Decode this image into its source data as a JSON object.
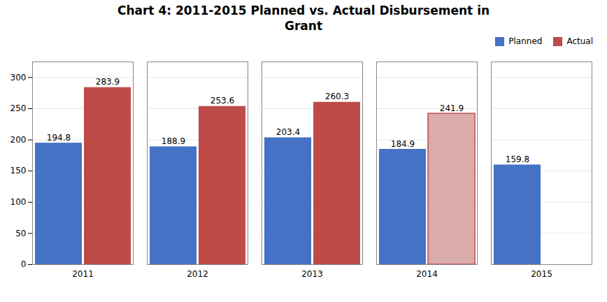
{
  "chart_data": {
    "type": "bar",
    "title": "Chart 4: 2011-2015 Planned vs. Actual Disbursement in\nGrant",
    "categories": [
      "2011",
      "2012",
      "2013",
      "2014",
      "2015"
    ],
    "series": [
      {
        "name": "Planned",
        "color": "#4472C4",
        "values": [
          194.8,
          188.9,
          203.4,
          184.9,
          159.8
        ]
      },
      {
        "name": "Actual",
        "color": "#BE4B48",
        "values": [
          283.9,
          253.6,
          260.3,
          241.9,
          null
        ],
        "colors": [
          "#BE4B48",
          "#BE4B48",
          "#BE4B48",
          "#D9ABAB",
          null
        ]
      }
    ],
    "ylim": [
      0,
      325
    ],
    "yticks": [
      0,
      50,
      100,
      150,
      200,
      250,
      300
    ],
    "grid": true,
    "legend": "upper right",
    "data_labels": true
  }
}
